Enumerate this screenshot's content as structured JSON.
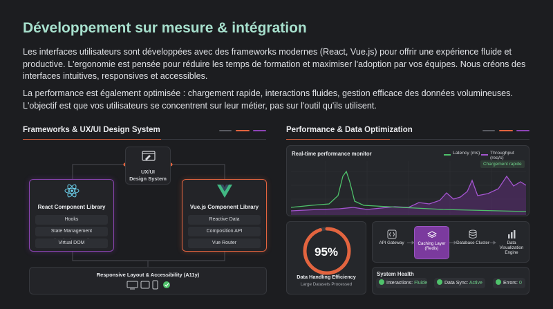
{
  "header": {
    "title": "Développement sur mesure & intégration",
    "paragraph1": "Les interfaces utilisateurs sont développées avec des frameworks modernes (React, Vue.js) pour offrir une expérience fluide et productive. L'ergonomie est pensée pour réduire les temps de formation et maximiser l'adoption par vos équipes. Nous créons des interfaces intuitives, responsives et accessibles.",
    "paragraph2": "La performance est également optimisée : chargement rapide, interactions fluides, gestion efficace des données volumineuses. L'objectif est que vos utilisateurs se concentrent sur leur métier, pas sur l'outil qu'ils utilisent."
  },
  "left": {
    "section_title": "Frameworks & UX/UI Design System",
    "design_system": "UX/UI\nDesign System",
    "react": {
      "title": "React Component Library",
      "items": [
        "Hooks",
        "State Management (Redux/Context)",
        "Virtual DOM"
      ]
    },
    "vue": {
      "title": "Vue.js Component Library",
      "items": [
        "Reactive Data",
        "Composition API",
        "Vue Router"
      ]
    },
    "responsive": "Responsive Layout & Accessibility (A11y)"
  },
  "right": {
    "section_title": "Performance & Data Optimization",
    "monitor": {
      "title": "Real-time performance monitor",
      "legend_latency": "Latency (ms)",
      "legend_throughput": "Throughput (req/s)",
      "badge": "Chargement rapide"
    },
    "efficiency": {
      "value": "95%",
      "percent": 95,
      "title": "Data Handling Efficiency",
      "subtitle": "Large Datasets Processed"
    },
    "pipeline": [
      {
        "label": "API Gateway",
        "icon": "brackets-icon"
      },
      {
        "label": "Caching Layer (Redis)",
        "icon": "layers-icon"
      },
      {
        "label": "Database Cluster",
        "icon": "database-icon"
      },
      {
        "label": "Data Visualization Engine",
        "icon": "bar-chart-icon"
      }
    ],
    "health": {
      "title": "System Health",
      "interactions_label": "Interactions:",
      "interactions_value": "Fluide",
      "datasync_label": "Data Sync:",
      "datasync_value": "Active",
      "errors_label": "Errors:",
      "errors_value": "0"
    }
  },
  "colors": {
    "accent_orange": "#e3643f",
    "accent_purple": "#8e44b8",
    "latency_green": "#4fc26b",
    "title_mint": "#a7e0cd"
  }
}
